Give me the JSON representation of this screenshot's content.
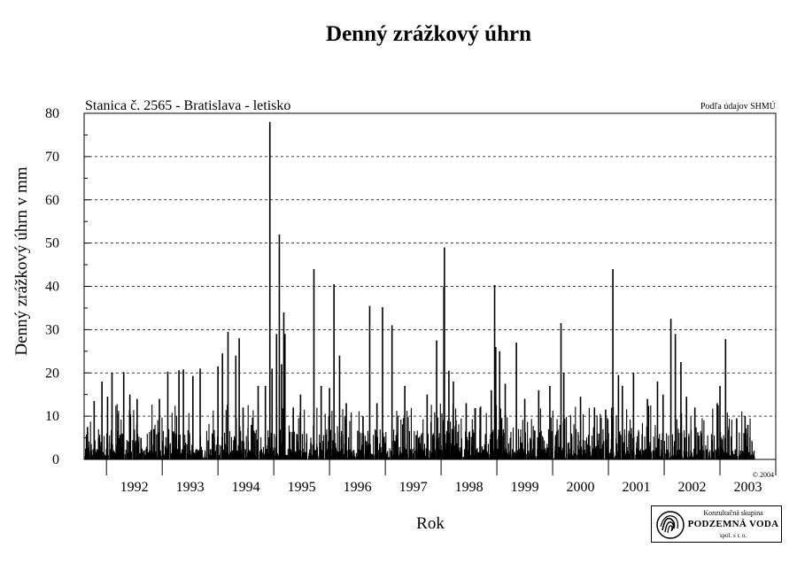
{
  "chart_data": {
    "type": "bar",
    "title": "Denný zrážkový úhrn",
    "subtitle_left": "Stanica č. 2565 - Bratislava - letisko",
    "subtitle_right": "Podľa údajov SHMÚ",
    "xlabel": "Rok",
    "ylabel": "Denný zrážkový úhrn v mm",
    "ylim": [
      0,
      80
    ],
    "yticks": [
      0,
      10,
      20,
      30,
      40,
      50,
      60,
      70,
      80
    ],
    "xlim": [
      1991.6,
      2004.0
    ],
    "grid": "horizontal dashed",
    "copyright": "© 2004",
    "years": [
      "1992",
      "1993",
      "1994",
      "1995",
      "1996",
      "1997",
      "1998",
      "1999",
      "2000",
      "2001",
      "2002",
      "2003"
    ],
    "peaks": [
      {
        "t": 1991.66,
        "v": 7.5
      },
      {
        "t": 1991.78,
        "v": 13.5
      },
      {
        "t": 1991.86,
        "v": 5
      },
      {
        "t": 1991.92,
        "v": 18
      },
      {
        "t": 1992.02,
        "v": 14.5
      },
      {
        "t": 1992.1,
        "v": 20
      },
      {
        "t": 1992.2,
        "v": 6.5
      },
      {
        "t": 1992.31,
        "v": 20.2
      },
      {
        "t": 1992.42,
        "v": 15
      },
      {
        "t": 1992.55,
        "v": 14
      },
      {
        "t": 1992.62,
        "v": 5
      },
      {
        "t": 1992.85,
        "v": 7
      },
      {
        "t": 1992.95,
        "v": 14
      },
      {
        "t": 1993.1,
        "v": 20.3
      },
      {
        "t": 1993.2,
        "v": 6.5
      },
      {
        "t": 1993.3,
        "v": 20.6
      },
      {
        "t": 1993.38,
        "v": 20.8
      },
      {
        "t": 1993.55,
        "v": 19.3
      },
      {
        "t": 1993.68,
        "v": 21
      },
      {
        "t": 1993.9,
        "v": 6
      },
      {
        "t": 1994.0,
        "v": 21.5
      },
      {
        "t": 1994.08,
        "v": 24.5
      },
      {
        "t": 1994.18,
        "v": 29.5
      },
      {
        "t": 1994.32,
        "v": 24
      },
      {
        "t": 1994.38,
        "v": 28
      },
      {
        "t": 1994.45,
        "v": 12
      },
      {
        "t": 1994.6,
        "v": 8
      },
      {
        "t": 1994.72,
        "v": 17
      },
      {
        "t": 1994.85,
        "v": 17
      },
      {
        "t": 1994.93,
        "v": 78
      },
      {
        "t": 1994.97,
        "v": 21
      },
      {
        "t": 1995.05,
        "v": 29
      },
      {
        "t": 1995.1,
        "v": 52
      },
      {
        "t": 1995.14,
        "v": 22
      },
      {
        "t": 1995.18,
        "v": 34
      },
      {
        "t": 1995.2,
        "v": 29
      },
      {
        "t": 1995.35,
        "v": 12
      },
      {
        "t": 1995.48,
        "v": 15
      },
      {
        "t": 1995.72,
        "v": 44
      },
      {
        "t": 1995.85,
        "v": 17
      },
      {
        "t": 1996.0,
        "v": 16.5
      },
      {
        "t": 1996.08,
        "v": 40.5
      },
      {
        "t": 1996.18,
        "v": 24
      },
      {
        "t": 1996.3,
        "v": 13
      },
      {
        "t": 1996.6,
        "v": 10
      },
      {
        "t": 1996.72,
        "v": 35.5
      },
      {
        "t": 1996.85,
        "v": 13
      },
      {
        "t": 1996.95,
        "v": 35.2
      },
      {
        "t": 1997.12,
        "v": 31
      },
      {
        "t": 1997.35,
        "v": 17
      },
      {
        "t": 1997.6,
        "v": 5
      },
      {
        "t": 1997.75,
        "v": 15
      },
      {
        "t": 1997.92,
        "v": 27.5
      },
      {
        "t": 1998.05,
        "v": 40
      },
      {
        "t": 1998.06,
        "v": 49
      },
      {
        "t": 1998.14,
        "v": 20.5
      },
      {
        "t": 1998.22,
        "v": 18
      },
      {
        "t": 1998.45,
        "v": 13
      },
      {
        "t": 1998.7,
        "v": 12
      },
      {
        "t": 1998.9,
        "v": 16
      },
      {
        "t": 1998.96,
        "v": 40.3
      },
      {
        "t": 1998.98,
        "v": 26
      },
      {
        "t": 1999.05,
        "v": 25
      },
      {
        "t": 1999.15,
        "v": 17.5
      },
      {
        "t": 1999.35,
        "v": 27
      },
      {
        "t": 1999.5,
        "v": 14
      },
      {
        "t": 1999.75,
        "v": 16
      },
      {
        "t": 1999.95,
        "v": 17
      },
      {
        "t": 2000.15,
        "v": 31.5
      },
      {
        "t": 2000.2,
        "v": 20
      },
      {
        "t": 2000.5,
        "v": 14.5
      },
      {
        "t": 2000.75,
        "v": 12
      },
      {
        "t": 2000.95,
        "v": 11.5
      },
      {
        "t": 2001.08,
        "v": 44
      },
      {
        "t": 2001.18,
        "v": 19.5
      },
      {
        "t": 2001.25,
        "v": 17
      },
      {
        "t": 2001.45,
        "v": 20
      },
      {
        "t": 2001.7,
        "v": 14
      },
      {
        "t": 2001.88,
        "v": 18
      },
      {
        "t": 2001.98,
        "v": 15
      },
      {
        "t": 2002.12,
        "v": 32.5
      },
      {
        "t": 2002.2,
        "v": 29
      },
      {
        "t": 2002.3,
        "v": 22.5
      },
      {
        "t": 2002.4,
        "v": 14.5
      },
      {
        "t": 2002.55,
        "v": 12
      },
      {
        "t": 2002.62,
        "v": 5.5
      },
      {
        "t": 2002.95,
        "v": 13
      },
      {
        "t": 2003.0,
        "v": 17
      },
      {
        "t": 2003.1,
        "v": 27.8
      },
      {
        "t": 2003.3,
        "v": 9.5
      },
      {
        "t": 2003.45,
        "v": 10
      },
      {
        "t": 2003.5,
        "v": 8
      }
    ]
  },
  "logo": {
    "line1": "Konzultačná skupina",
    "line2": "PODZEMNÁ VODA",
    "line3": "spol. s r. o."
  }
}
